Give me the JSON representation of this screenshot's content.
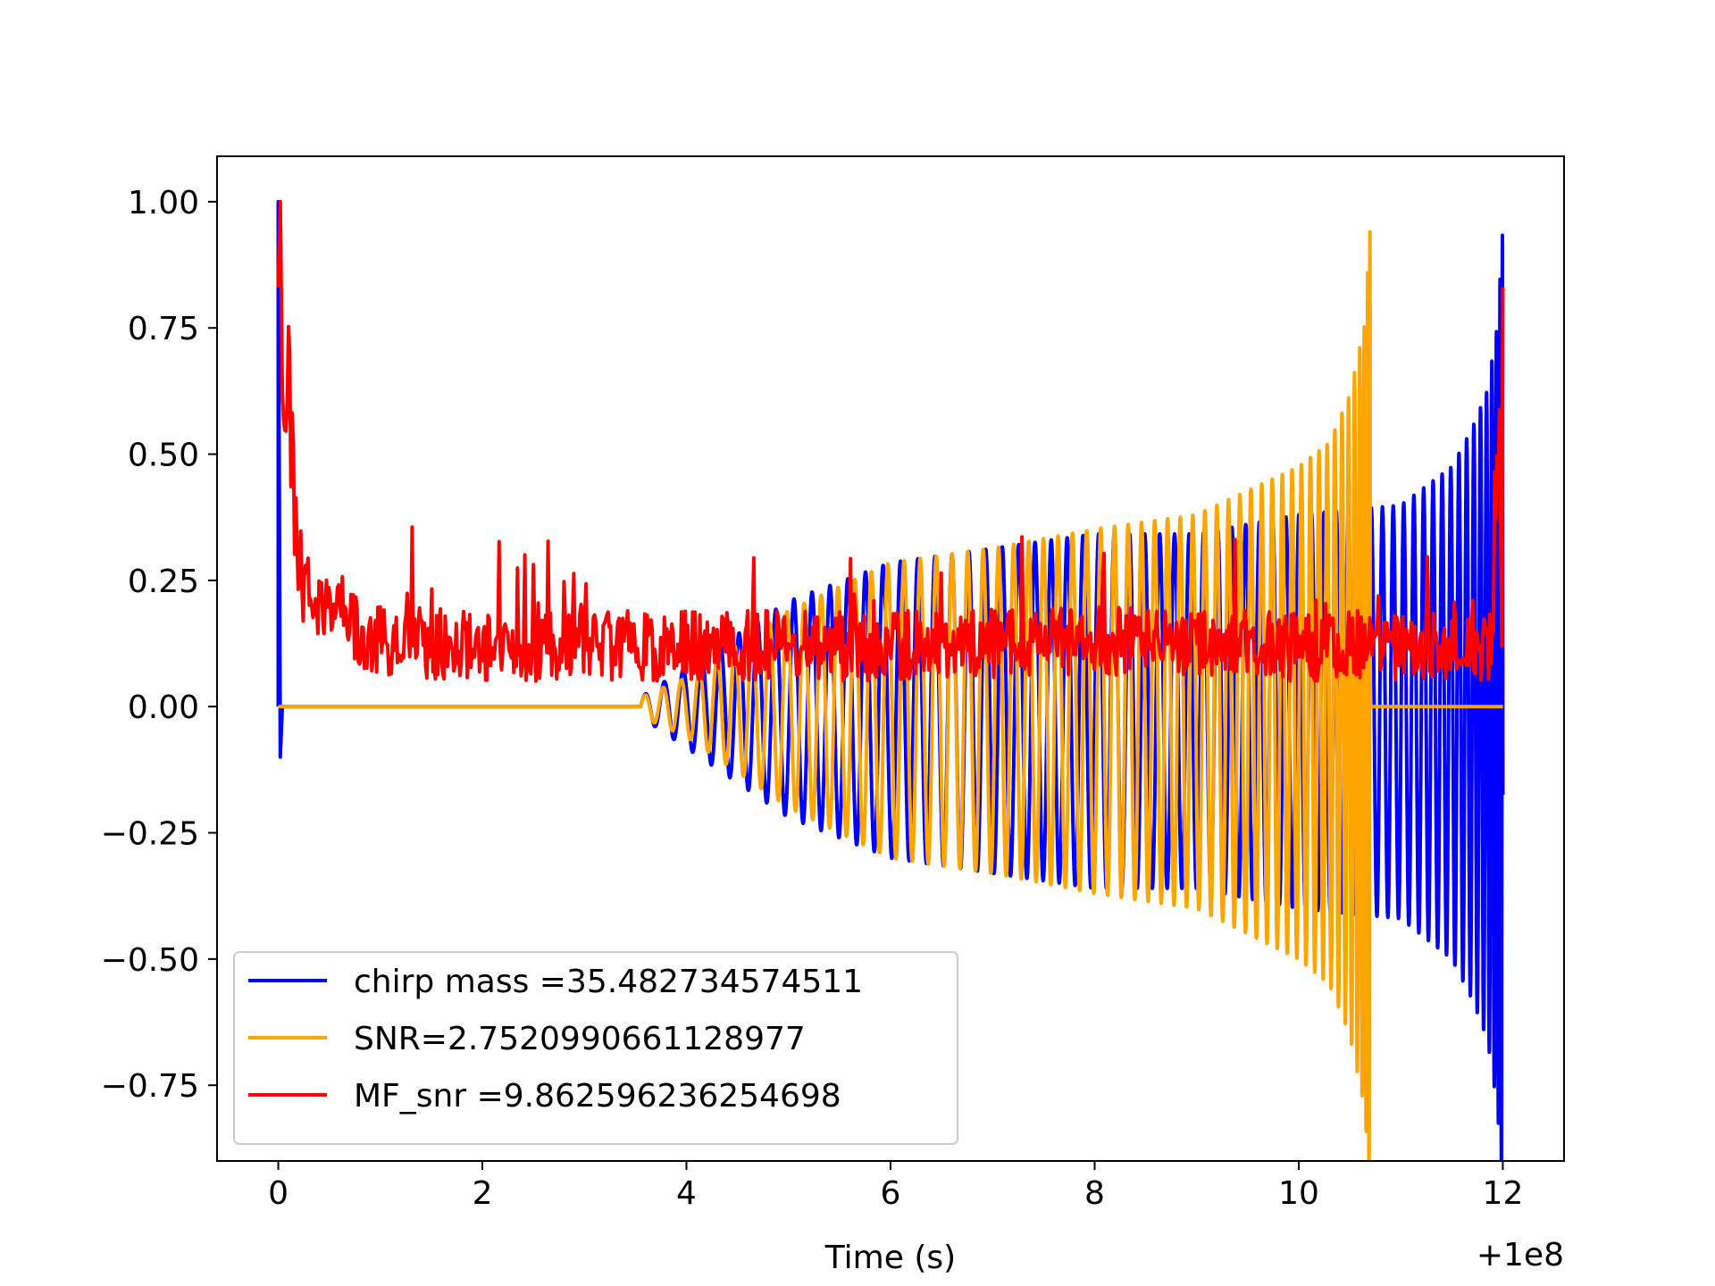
{
  "chart_data": {
    "type": "line",
    "title": "",
    "xlabel": "Time (s)",
    "ylabel": "",
    "x_offset_label": "+1e8",
    "xlim": [
      -0.6,
      12.6
    ],
    "ylim": [
      -0.9,
      1.09
    ],
    "x_ticks": [
      0,
      2,
      4,
      6,
      8,
      10,
      12
    ],
    "x_tick_labels": [
      "0",
      "2",
      "4",
      "6",
      "8",
      "10",
      "12"
    ],
    "y_ticks": [
      1.0,
      0.75,
      0.5,
      0.25,
      0.0,
      -0.25,
      -0.5,
      -0.75
    ],
    "y_tick_labels": [
      "1.00",
      "0.75",
      "0.50",
      "0.25",
      "0.00",
      "−0.25",
      "−0.50",
      "−0.75"
    ],
    "grid": false,
    "legend_position": "lower-left",
    "series": [
      {
        "name": "chirp mass =35.482734574511",
        "color": "#0000ff",
        "kind": "chirp",
        "x_start": 0.0,
        "x_merger": 12.0,
        "signal_start": 3.55,
        "amplitude_at_start": 0.02,
        "amplitude_envelope": [
          [
            3.55,
            0.02
          ],
          [
            5.0,
            0.22
          ],
          [
            6.0,
            0.3
          ],
          [
            8.0,
            0.36
          ],
          [
            9.0,
            0.36
          ],
          [
            10.0,
            0.4
          ],
          [
            11.0,
            0.42
          ],
          [
            11.5,
            0.5
          ],
          [
            11.7,
            0.58
          ],
          [
            11.85,
            0.66
          ],
          [
            11.95,
            0.8
          ],
          [
            12.0,
            1.0
          ]
        ],
        "initial_spike": [
          [
            0.0,
            1.0
          ],
          [
            0.02,
            -0.1
          ]
        ]
      },
      {
        "name": "SNR=2.7520990661128977",
        "color": "#ffa500",
        "kind": "chirp",
        "x_start": 0.0,
        "x_merger": 10.7,
        "signal_start": 3.55,
        "amplitude_envelope": [
          [
            3.55,
            0.02
          ],
          [
            4.0,
            0.06
          ],
          [
            5.0,
            0.2
          ],
          [
            6.0,
            0.3
          ],
          [
            7.0,
            0.33
          ],
          [
            8.0,
            0.37
          ],
          [
            9.0,
            0.4
          ],
          [
            10.0,
            0.5
          ],
          [
            10.3,
            0.55
          ],
          [
            10.5,
            0.65
          ],
          [
            10.65,
            0.8
          ],
          [
            10.7,
            1.0
          ]
        ],
        "x_end": 12.0
      },
      {
        "name": "MF_snr =9.862596236254698",
        "color": "#ff0000",
        "kind": "noise",
        "x_start": 0.0,
        "x_end": 12.0,
        "points": [
          [
            0.0,
            0.83
          ],
          [
            0.02,
            1.0
          ],
          [
            0.05,
            0.55
          ],
          [
            0.1,
            0.68
          ],
          [
            0.15,
            0.4
          ],
          [
            0.2,
            0.3
          ],
          [
            0.3,
            0.25
          ],
          [
            0.4,
            0.2
          ],
          [
            0.6,
            0.17
          ],
          [
            1.0,
            0.13
          ],
          [
            2.0,
            0.12
          ],
          [
            4.0,
            0.12
          ],
          [
            6.0,
            0.12
          ],
          [
            8.0,
            0.13
          ],
          [
            10.0,
            0.12
          ],
          [
            11.0,
            0.12
          ],
          [
            11.9,
            0.12
          ],
          [
            12.0,
            0.83
          ]
        ]
      }
    ]
  }
}
